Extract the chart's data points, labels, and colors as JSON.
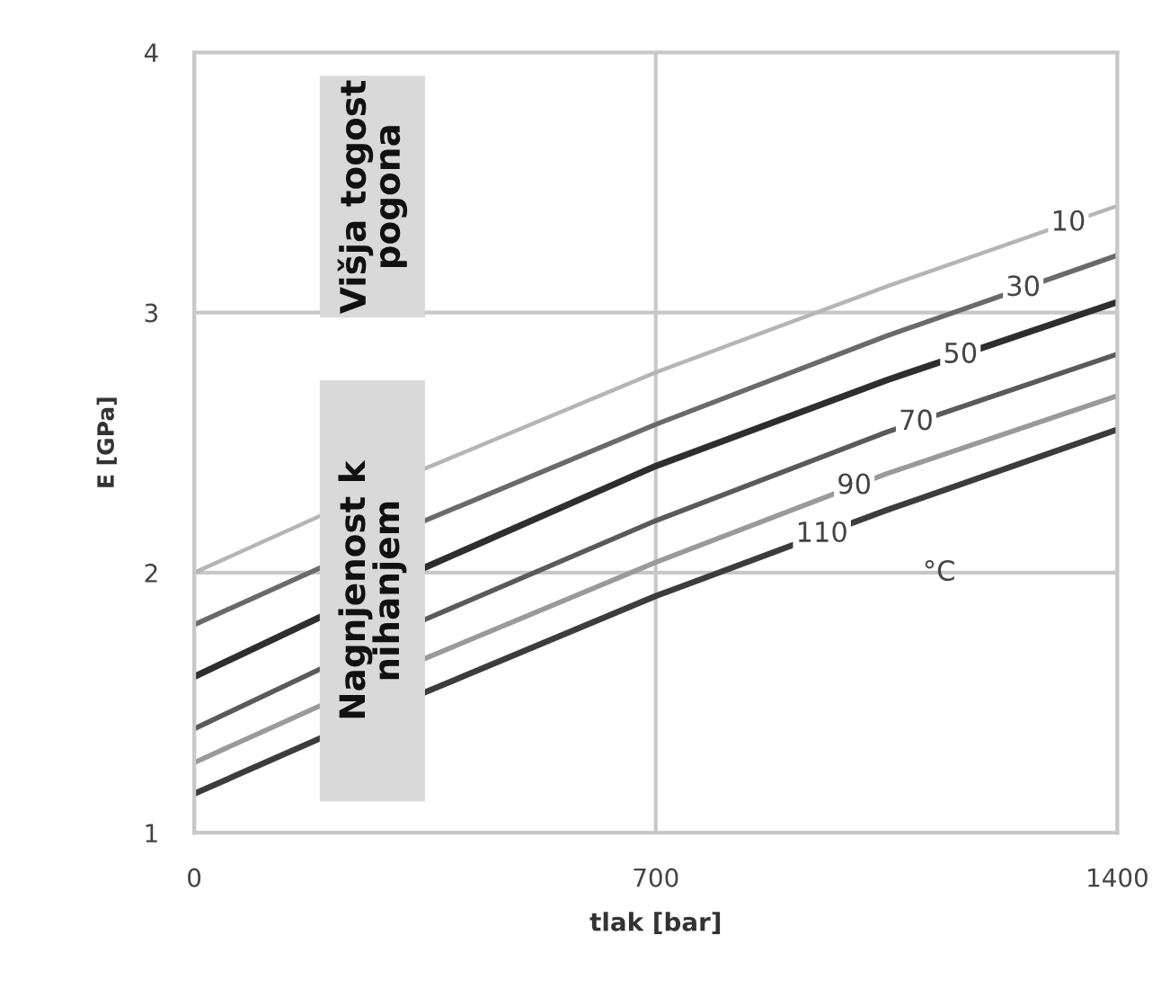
{
  "chart_data": {
    "type": "line",
    "xlabel": "tlak [bar]",
    "ylabel": "E [GPa]",
    "x": [
      0,
      350,
      700,
      1050,
      1400
    ],
    "series": [
      {
        "name": "10",
        "color": "#b5b5b5",
        "values": [
          2.0,
          2.4,
          2.77,
          3.1,
          3.41
        ]
      },
      {
        "name": "30",
        "color": "#6a6a6a",
        "values": [
          1.8,
          2.2,
          2.57,
          2.91,
          3.22
        ]
      },
      {
        "name": "50",
        "color": "#2e2e2e",
        "values": [
          1.6,
          2.02,
          2.41,
          2.74,
          3.04
        ]
      },
      {
        "name": "70",
        "color": "#5a5a5a",
        "values": [
          1.4,
          1.82,
          2.2,
          2.54,
          2.84
        ]
      },
      {
        "name": "90",
        "color": "#9a9a9a",
        "values": [
          1.27,
          1.67,
          2.04,
          2.38,
          2.68
        ]
      },
      {
        "name": "110",
        "color": "#3c3c3c",
        "values": [
          1.15,
          1.54,
          1.91,
          2.24,
          2.55
        ]
      }
    ],
    "xlim": [
      0,
      1400
    ],
    "ylim": [
      1,
      4
    ],
    "xticks": [
      0,
      700,
      1400
    ],
    "yticks": [
      1,
      2,
      3,
      4
    ],
    "grid": true,
    "legend": false,
    "marker": "none",
    "line_style": "solid",
    "annotations": [
      "Višja togost pogona",
      "Nagnjenost k nihanjem",
      "°C"
    ]
  }
}
